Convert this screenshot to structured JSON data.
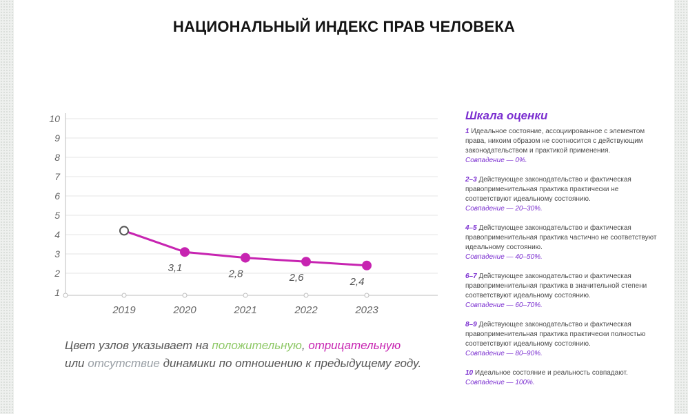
{
  "title": "НАЦИОНАЛЬНЫЙ ИНДЕКС ПРАВ ЧЕЛОВЕКА",
  "chart_data": {
    "type": "line",
    "title": "",
    "xlabel": "",
    "ylabel": "",
    "categories": [
      "2019",
      "2020",
      "2021",
      "2022",
      "2023"
    ],
    "yticks": [
      "1",
      "2",
      "3",
      "4",
      "5",
      "6",
      "7",
      "8",
      "9",
      "10"
    ],
    "ylim": [
      1,
      10
    ],
    "series": [
      {
        "values": [
          4.2,
          3.1,
          2.8,
          2.6,
          2.4
        ],
        "data_labels": [
          "",
          "3,1",
          "2,8",
          "2,6",
          "2,4"
        ],
        "node_status": [
          "baseline",
          "negative",
          "negative",
          "negative",
          "negative"
        ]
      }
    ],
    "grid": true,
    "colors": {
      "line": "#c724b1",
      "negative": "#c724b1",
      "positive": "#8ec866",
      "neutral": "#9aa0a6",
      "grid": "#e6e6e6",
      "axis": "#bdbdbd"
    }
  },
  "note": {
    "part1": "Цвет узлов указывает на ",
    "positive": "положительную",
    "sep": ", ",
    "negative": "отрицательную",
    "part2": " или ",
    "none": "отсутствие",
    "part3": " динамики по отношению к предыдущему году."
  },
  "scale": {
    "title": "Шкала оценки",
    "items": [
      {
        "range": "1",
        "text": " Идеальное состояние, ассоциированное с элементом права, никоим образом не соотносится с действующим законодательством и практикой применения.",
        "match": "Совпадение — 0%."
      },
      {
        "range": "2–3",
        "text": " Действующее законодательство и фактическая правоприменительная практика практически не соответствуют идеальному состоянию.",
        "match": "Совпадение — 20–30%."
      },
      {
        "range": "4–5",
        "text": " Действующее законодательство и фактическая правоприменительная практика частично не соответствуют идеальному состоянию.",
        "match": "Совпадение — 40–50%."
      },
      {
        "range": "6–7",
        "text": " Действующее законодательство и фактическая правоприменительная практика в значительной степени соответствуют идеальному состоянию.",
        "match": "Совпадение — 60–70%."
      },
      {
        "range": "8–9",
        "text": " Действующее законодательство и фактическая правоприменительная практика практически полностью соответствуют идеальному состоянию.",
        "match": "Совпадение — 80–90%."
      },
      {
        "range": "10",
        "text": " Идеальное состояние и реальность совпадают.",
        "match": "Совпадение — 100%."
      }
    ]
  }
}
